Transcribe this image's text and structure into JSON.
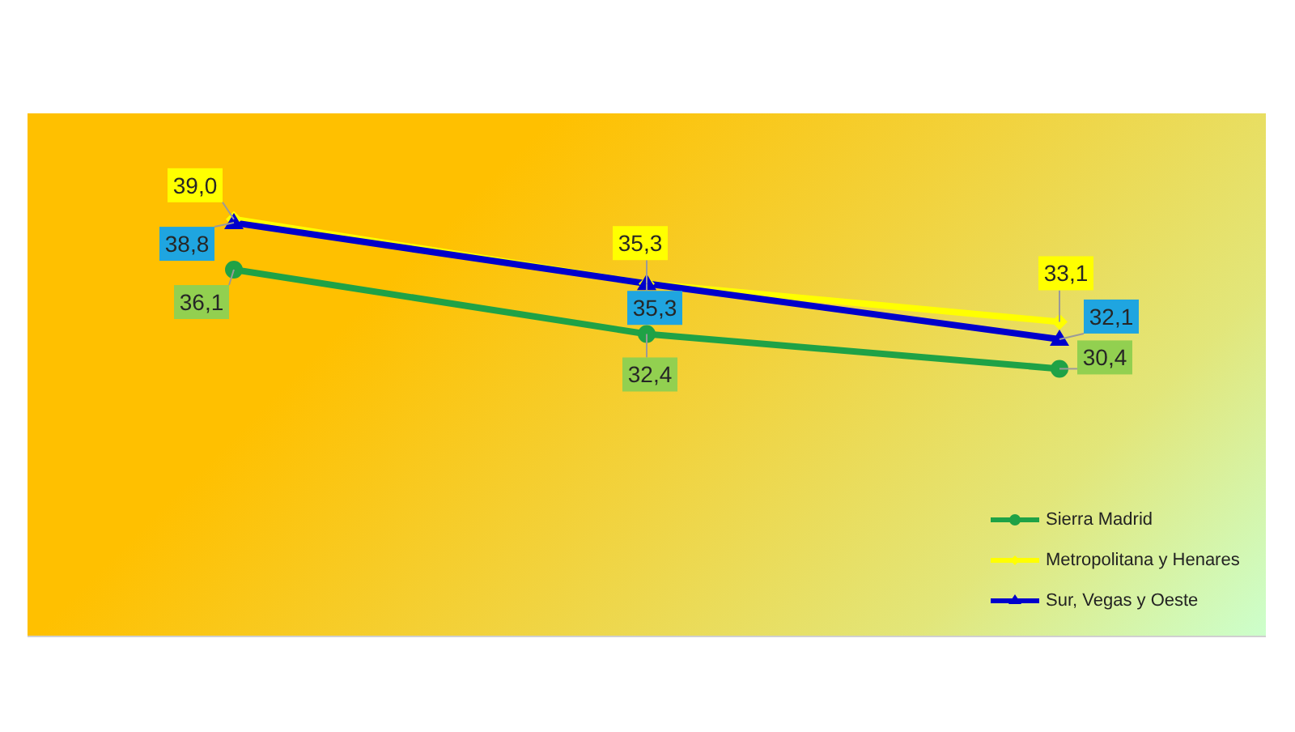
{
  "chart_data": {
    "type": "line",
    "categories": [
      null,
      null,
      null
    ],
    "series": [
      {
        "name": "Sierra Madrid",
        "color": "#1fa246",
        "values": [
          36.1,
          32.4,
          30.4
        ],
        "value_labels": [
          "36,1",
          "32,4",
          "30,4"
        ],
        "marker": "circle"
      },
      {
        "name": "Metropolitana y Henares",
        "color": "#ffff00",
        "values": [
          39.0,
          35.3,
          33.1
        ],
        "value_labels": [
          "39,0",
          "35,3",
          "33,1"
        ],
        "marker": "diamond"
      },
      {
        "name": "Sur, Vegas y Oeste",
        "color": "#0000cc",
        "values": [
          38.8,
          35.3,
          32.1
        ],
        "value_labels": [
          "38,8",
          "35,3",
          "32,1"
        ],
        "marker": "triangle"
      }
    ],
    "ylim": [
      15,
      45
    ],
    "tick_labels": false,
    "legend": "bottom right",
    "line_style": "solid"
  }
}
